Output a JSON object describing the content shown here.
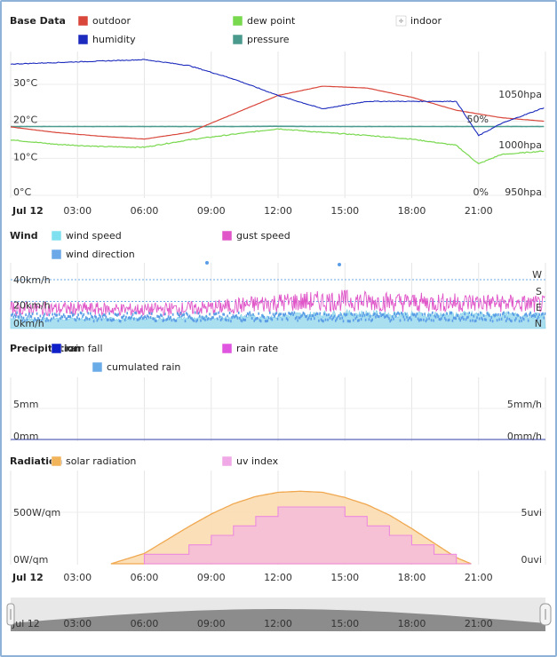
{
  "time_labels": [
    "Jul 12",
    "03:00",
    "06:00",
    "09:00",
    "12:00",
    "15:00",
    "18:00",
    "21:00"
  ],
  "base": {
    "title": "Base Data",
    "legend": [
      {
        "label": "outdoor",
        "color": "#d9463a"
      },
      {
        "label": "dew point",
        "color": "#78d84e"
      },
      {
        "label": "indoor",
        "color": "#cccccc",
        "disabled": true
      },
      {
        "label": "humidity",
        "color": "#1c2bbd"
      },
      {
        "label": "pressure",
        "color": "#4a9a8e"
      }
    ],
    "y_left_labels": [
      "30°C",
      "20°C",
      "10°C",
      "0°C"
    ],
    "y_right_labels": [
      "1050hpa",
      "50%",
      "1000hpa",
      "0%",
      "950hpa"
    ]
  },
  "wind": {
    "title": "Wind",
    "legend": [
      {
        "label": "wind speed",
        "color": "#7fe0f0"
      },
      {
        "label": "gust speed",
        "color": "#e055c8"
      },
      {
        "label": "wind direction",
        "color": "#6aa8e8"
      }
    ],
    "y_left_labels": [
      "40km/h",
      "20km/h",
      "0km/h"
    ],
    "y_right_labels": [
      "W",
      "S",
      "E",
      "N"
    ]
  },
  "precip": {
    "title": "Precipitation",
    "legend": [
      {
        "label": "rain fall",
        "color": "#1020c8"
      },
      {
        "label": "rain rate",
        "color": "#e055e0"
      },
      {
        "label": "cumulated rain",
        "color": "#6aace8"
      }
    ],
    "y_left_labels": [
      "5mm",
      "0mm"
    ],
    "y_right_labels": [
      "5mm/h",
      "0mm/h"
    ]
  },
  "radiation": {
    "title": "Radiation",
    "legend": [
      {
        "label": "solar radiation",
        "color": "#f2b45a"
      },
      {
        "label": "uv index",
        "color": "#f0a8e6"
      }
    ],
    "y_left_labels": [
      "500W/qm",
      "0W/qm"
    ],
    "y_right_labels": [
      "5uvi",
      "0uvi"
    ]
  },
  "chart_data": [
    {
      "type": "line",
      "x": [
        "00:00",
        "02:00",
        "04:00",
        "06:00",
        "08:00",
        "10:00",
        "12:00",
        "14:00",
        "16:00",
        "18:00",
        "20:00",
        "21:00",
        "22:00",
        "23:59"
      ],
      "series": [
        {
          "name": "outdoor",
          "unit": "°C",
          "values": [
            18.5,
            17.0,
            16.0,
            15.2,
            17.0,
            22.0,
            27.0,
            29.5,
            29.0,
            26.5,
            23.0,
            22.0,
            21.0,
            20.0
          ]
        },
        {
          "name": "dew point",
          "unit": "°C",
          "values": [
            15.0,
            13.8,
            13.2,
            13.0,
            15.0,
            16.5,
            18.0,
            17.0,
            16.2,
            15.2,
            13.5,
            8.5,
            11.0,
            12.0
          ]
        },
        {
          "name": "humidity",
          "unit": "%",
          "values": [
            88,
            89,
            90,
            91,
            87,
            78,
            67,
            58,
            63,
            63,
            63,
            40,
            48,
            59
          ]
        },
        {
          "name": "pressure",
          "unit": "hpa",
          "values": [
            1018.0,
            1018.0,
            1018.0,
            1018.0,
            1018.0,
            1018.0,
            1018.2,
            1018.0,
            1018.0,
            1018.0,
            1018.0,
            1018.0,
            1018.0,
            1018.0
          ]
        }
      ],
      "ylim_left": [
        0,
        32
      ],
      "ylim_right_humidity": [
        0,
        100
      ],
      "ylim_right_pressure": [
        950,
        1050
      ]
    },
    {
      "type": "area",
      "x": [
        "00:00",
        "03:00",
        "06:00",
        "09:00",
        "12:00",
        "15:00",
        "18:00",
        "21:00",
        "23:59"
      ],
      "series": [
        {
          "name": "wind speed",
          "unit": "km/h",
          "values": [
            4,
            4,
            4,
            5,
            7,
            9,
            8,
            8,
            7
          ]
        },
        {
          "name": "gust speed",
          "unit": "km/h",
          "values": [
            14,
            14,
            13,
            15,
            20,
            22,
            20,
            20,
            18
          ]
        },
        {
          "name": "wind direction",
          "unit": "compass",
          "values": [
            "N",
            "N",
            "N",
            "N",
            "N",
            "N",
            "N",
            "N",
            "N"
          ]
        }
      ],
      "ylim": [
        0,
        50
      ]
    },
    {
      "type": "line",
      "x": [
        "00:00",
        "23:59"
      ],
      "series": [
        {
          "name": "rain fall",
          "unit": "mm",
          "values": [
            0,
            0
          ]
        },
        {
          "name": "rain rate",
          "unit": "mm/h",
          "values": [
            0,
            0
          ]
        },
        {
          "name": "cumulated rain",
          "unit": "mm",
          "values": [
            0,
            0
          ]
        }
      ],
      "ylim": [
        0,
        10
      ]
    },
    {
      "type": "area",
      "x": [
        "04:30",
        "06:00",
        "07:00",
        "08:00",
        "09:00",
        "10:00",
        "11:00",
        "12:00",
        "13:00",
        "14:00",
        "15:00",
        "16:00",
        "17:00",
        "18:00",
        "19:00",
        "20:00",
        "20:40"
      ],
      "series": [
        {
          "name": "solar radiation",
          "unit": "W/qm",
          "values": [
            0,
            100,
            230,
            360,
            480,
            580,
            650,
            690,
            700,
            690,
            640,
            570,
            470,
            340,
            200,
            60,
            0
          ]
        },
        {
          "name": "uv index",
          "unit": "uvi",
          "values": [
            0,
            1,
            1,
            2,
            3,
            4,
            5,
            6,
            6,
            6,
            5,
            4,
            3,
            2,
            1,
            0,
            0
          ]
        }
      ],
      "ylim": [
        0,
        900
      ]
    }
  ]
}
